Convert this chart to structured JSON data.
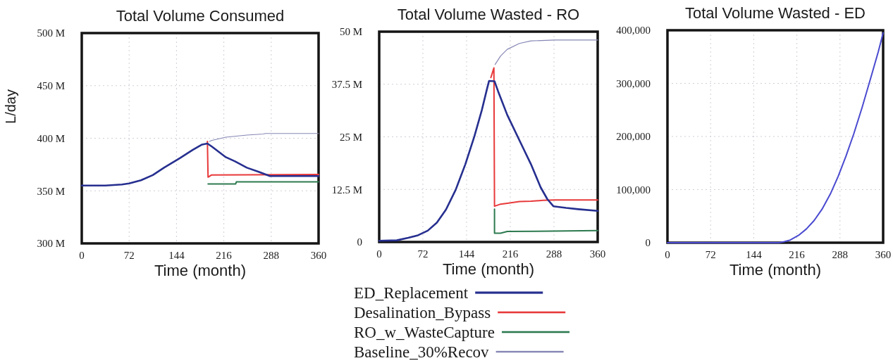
{
  "chart_data": [
    {
      "type": "line",
      "title": "Total Volume Consumed",
      "xlabel": "Time (month)",
      "ylabel": "L/day",
      "xlim": [
        0,
        360
      ],
      "xticks": [
        0,
        72,
        144,
        216,
        288,
        360
      ],
      "ylim": [
        300000000,
        500000000
      ],
      "yticks": [
        {
          "value": 300000000,
          "label": "300 M"
        },
        {
          "value": 350000000,
          "label": "350 M"
        },
        {
          "value": 400000000,
          "label": "400 M"
        },
        {
          "value": 450000000,
          "label": "450 M"
        },
        {
          "value": 500000000,
          "label": "500 M"
        }
      ],
      "grid": true,
      "series": [
        {
          "color": "#262f8f",
          "x": [
            0,
            36,
            61,
            72,
            90,
            108,
            125,
            149,
            169,
            183,
            191,
            198,
            219,
            233,
            251,
            269,
            286,
            304,
            360
          ],
          "values": [
            355000000,
            355000000,
            356000000,
            357000000,
            360000000,
            365000000,
            372000000,
            381000000,
            389000000,
            394000000,
            395000000,
            392000000,
            382000000,
            378000000,
            372000000,
            368000000,
            364000000,
            364000000,
            364000000
          ]
        },
        {
          "color": "#e8393a",
          "x": [
            191,
            192,
            197,
            360
          ],
          "values": [
            397000000,
            363000000,
            365000000,
            365500000
          ]
        },
        {
          "color": "#2d7a50",
          "x": [
            192,
            234,
            235,
            360
          ],
          "values": [
            356500000,
            356500000,
            358500000,
            358500000
          ]
        },
        {
          "color": "#8586b4",
          "x": [
            194,
            198,
            219,
            251,
            276,
            279,
            360
          ],
          "values": [
            397000000,
            398000000,
            401000000,
            403000000,
            404000000,
            404500000,
            404500000
          ]
        }
      ]
    },
    {
      "type": "line",
      "title": "Total Volume Wasted - RO",
      "xlabel": "Time (month)",
      "xlim": [
        0,
        360
      ],
      "xticks": [
        0,
        72,
        144,
        216,
        288,
        360
      ],
      "ylim": [
        0,
        50000000
      ],
      "yticks": [
        0,
        {
          "value": 12500000,
          "label": "12.5 M"
        },
        {
          "value": 25000000,
          "label": "25 M"
        },
        {
          "value": 37500000,
          "label": "37.5 M"
        },
        {
          "value": 50000000,
          "label": "50 M"
        }
      ],
      "grid": true,
      "legend": "bottom",
      "series": [
        {
          "name": "ED_Replacement",
          "color": "#262f8f",
          "x": [
            0,
            29,
            48,
            64,
            80,
            95,
            110,
            126,
            142,
            157,
            169,
            178,
            181,
            190,
            196,
            211,
            235,
            250,
            266,
            277,
            287,
            308,
            328,
            360
          ],
          "values": [
            300000,
            400000,
            1000000,
            1600000,
            2700000,
            4600000,
            7700000,
            12400000,
            18500000,
            25200000,
            31300000,
            36600000,
            38300000,
            38200000,
            35800000,
            30200000,
            23000000,
            18500000,
            13000000,
            10200000,
            8500000,
            8100000,
            7800000,
            7400000
          ]
        },
        {
          "name": "Desalination_Bypass",
          "color": "#e8393a",
          "x": [
            184,
            189,
            190,
            200,
            211,
            231,
            250,
            270,
            289,
            360
          ],
          "values": [
            39100000,
            41400000,
            8500000,
            9000000,
            9200000,
            9600000,
            9700000,
            9900000,
            10000000,
            10000000
          ]
        },
        {
          "name": "RO_w_WasteCapture",
          "color": "#2d7a50",
          "x": [
            190,
            190,
            200,
            211,
            360
          ],
          "values": [
            7800000,
            2100000,
            2100000,
            2500000,
            2700000
          ]
        },
        {
          "name": "Baseline_30%Recov",
          "color": "#8586b4",
          "x": [
            191,
            200,
            211,
            231,
            250,
            289,
            360
          ],
          "values": [
            42200000,
            44200000,
            45800000,
            47200000,
            47800000,
            48000000,
            48000000
          ]
        }
      ]
    },
    {
      "type": "line",
      "title": "Total Volume Wasted - ED",
      "xlabel": "Time (month)",
      "xlim": [
        0,
        360
      ],
      "xticks": [
        0,
        72,
        144,
        216,
        288,
        360
      ],
      "ylim": [
        0,
        400000
      ],
      "yticks": [
        0,
        {
          "value": 100000,
          "label": "100,000"
        },
        {
          "value": 200000,
          "label": "200,000"
        },
        {
          "value": 300000,
          "label": "300,000"
        },
        {
          "value": 400000,
          "label": "400,000"
        }
      ],
      "grid": true,
      "series": [
        {
          "color": "#4a4ad0",
          "x": [
            0,
            60,
            120,
            186,
            195,
            205,
            219,
            232,
            245,
            258,
            272,
            285,
            298,
            311,
            325,
            340,
            352,
            360
          ],
          "values": [
            0,
            0,
            0,
            0,
            2000,
            5000,
            14000,
            26000,
            42000,
            63000,
            92000,
            125000,
            163000,
            205000,
            255000,
            313000,
            360000,
            395000
          ]
        }
      ]
    }
  ]
}
